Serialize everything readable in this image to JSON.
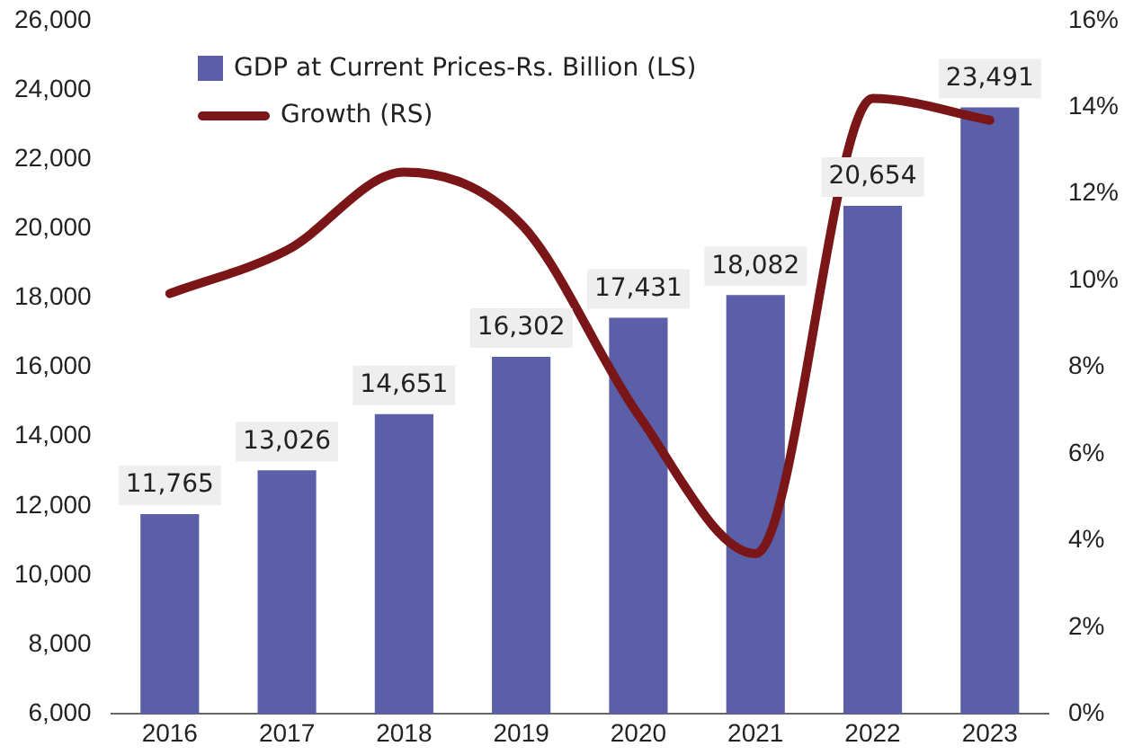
{
  "chart_data": {
    "type": "bar",
    "categories": [
      "2016",
      "2017",
      "2018",
      "2019",
      "2020",
      "2021",
      "2022",
      "2023"
    ],
    "series": [
      {
        "name": "GDP at Current Prices-Rs. Billion (LS)",
        "color": "#5a5fa8",
        "values": [
          11765,
          13026,
          14651,
          16302,
          17431,
          18082,
          20654,
          23491
        ],
        "value_labels": [
          "11,765",
          "13,026",
          "14,651",
          "16,302",
          "17,431",
          "18,082",
          "20,654",
          "23,491"
        ]
      },
      {
        "name": "Growth (RS)",
        "type": "line",
        "axis": "y2",
        "color": "#7a1518",
        "values": [
          9.7,
          10.7,
          12.5,
          11.3,
          6.9,
          3.7,
          14.2,
          13.7
        ]
      }
    ],
    "ylim": [
      6000,
      26000
    ],
    "yticks": [
      {
        "value": 6000,
        "label": "6,000"
      },
      {
        "value": 8000,
        "label": "8,000"
      },
      {
        "value": 10000,
        "label": "10,000"
      },
      {
        "value": 12000,
        "label": "12,000"
      },
      {
        "value": 14000,
        "label": "14,000"
      },
      {
        "value": 16000,
        "label": "16,000"
      },
      {
        "value": 18000,
        "label": "18,000"
      },
      {
        "value": 20000,
        "label": "20,000"
      },
      {
        "value": 22000,
        "label": "22,000"
      },
      {
        "value": 24000,
        "label": "24,000"
      },
      {
        "value": 26000,
        "label": "26,000"
      }
    ],
    "y2lim": [
      0,
      16
    ],
    "y2ticks": [
      {
        "value": 0,
        "label": "0%"
      },
      {
        "value": 2,
        "label": "2%"
      },
      {
        "value": 4,
        "label": "4%"
      },
      {
        "value": 6,
        "label": "6%"
      },
      {
        "value": 8,
        "label": "8%"
      },
      {
        "value": 10,
        "label": "10%"
      },
      {
        "value": 12,
        "label": "12%"
      },
      {
        "value": 14,
        "label": "14%"
      },
      {
        "value": 16,
        "label": "16%"
      }
    ],
    "grid": false,
    "legend": "top left",
    "marker": "none"
  }
}
